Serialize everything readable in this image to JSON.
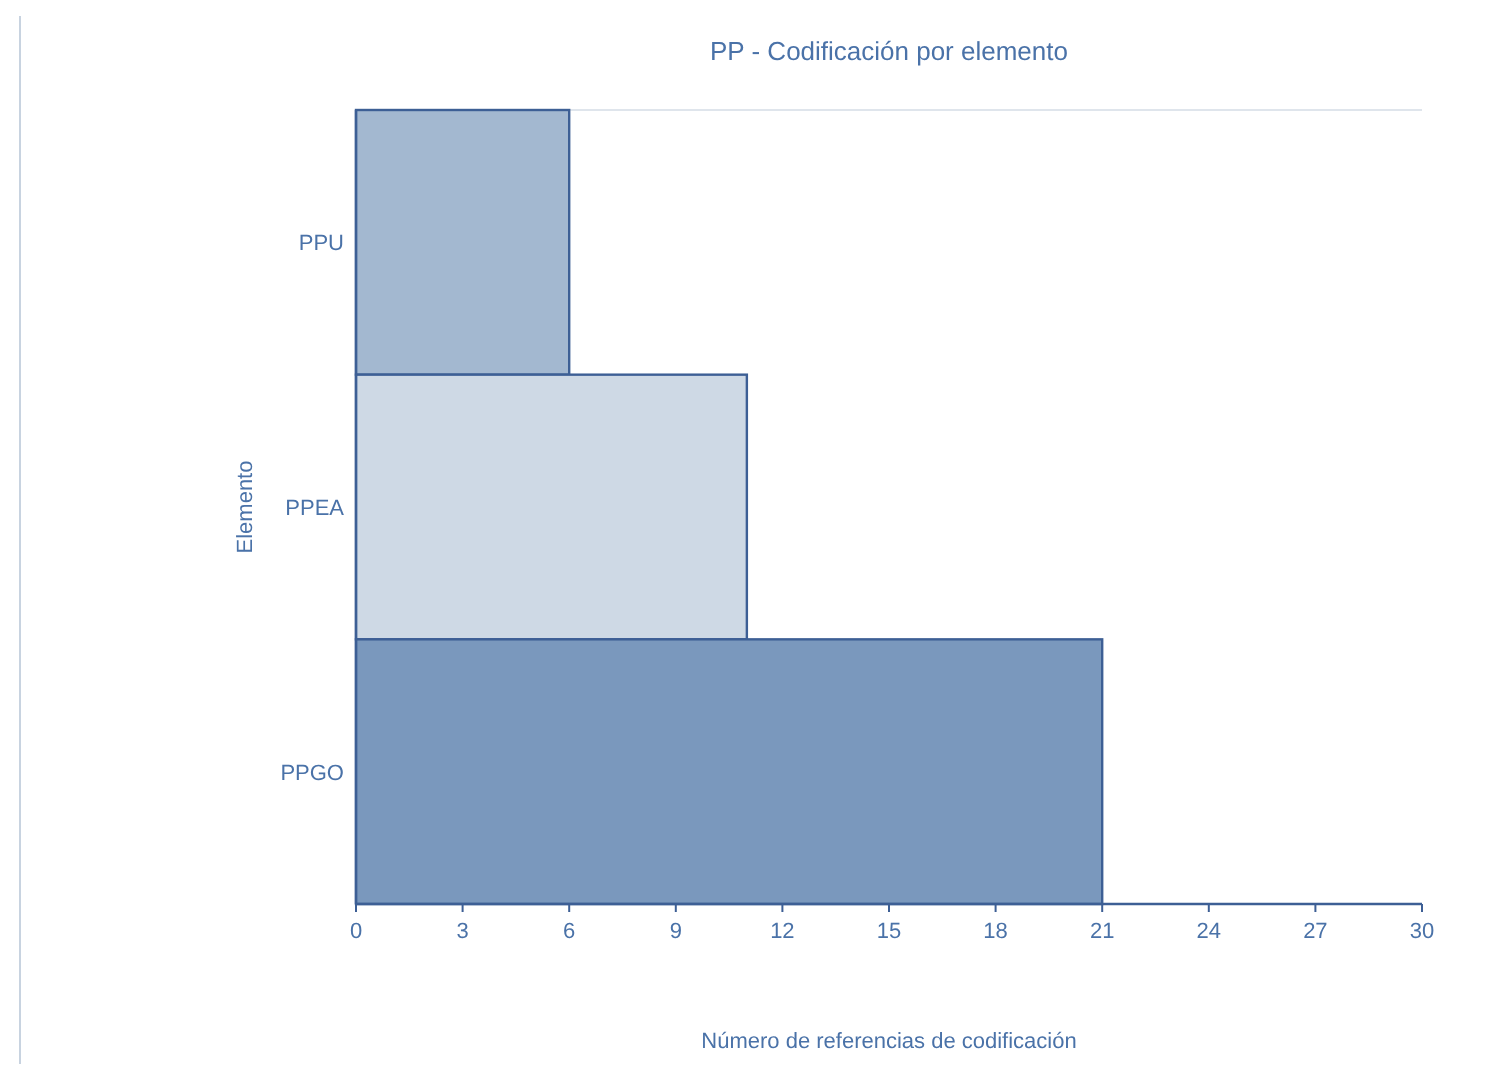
{
  "chart_data": {
    "type": "bar",
    "orientation": "horizontal",
    "title": "PP - Codificación por elemento",
    "xlabel": "Número de referencias de codificación",
    "ylabel": "Elemento",
    "categories": [
      "PPU",
      "PPEA",
      "PPGO"
    ],
    "values": [
      6,
      11,
      21
    ],
    "colors": [
      "#a3b8d0",
      "#ced9e5",
      "#7a98bd"
    ],
    "xlim": [
      0,
      30
    ],
    "xticks": [
      0,
      3,
      6,
      9,
      12,
      15,
      18,
      21,
      24,
      27,
      30
    ],
    "grid": false
  }
}
